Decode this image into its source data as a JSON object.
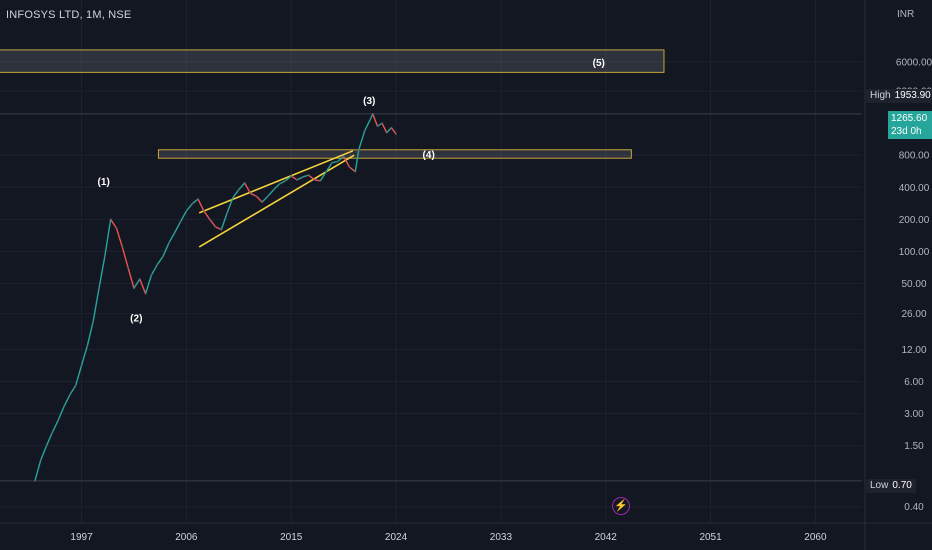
{
  "header": {
    "symbol_title": "INFOSYS LTD, 1M, NSE"
  },
  "price_scale": {
    "currency": "INR"
  },
  "high_marker": {
    "label": "High",
    "value": "1953.90"
  },
  "low_marker": {
    "label": "Low",
    "value": "0.70"
  },
  "last_price": {
    "value": "1265.60",
    "countdown": "23d 0h"
  },
  "colors": {
    "background": "#131722",
    "up": "#26a69a",
    "down": "#ef5350",
    "trendline": "#f5d33c",
    "zone_border": "#c9a53a",
    "accent": "#9c27b0"
  },
  "icons": {
    "bottom_button": "lightning-icon"
  },
  "chart_data": {
    "type": "line",
    "scale": "log",
    "y_ticks": [
      "6000.00",
      "3200.00",
      "800.00",
      "400.00",
      "200.00",
      "100.00",
      "50.00",
      "26.00",
      "12.00",
      "6.00",
      "3.00",
      "1.50",
      "0.40"
    ],
    "x_ticks": [
      "1997",
      "2006",
      "2015",
      "2024",
      "2033",
      "2042",
      "2051",
      "2060"
    ],
    "xlim": [
      1990,
      2064
    ],
    "ylim": [
      0.3,
      12000
    ],
    "series": [
      {
        "points": [
          [
            1993.0,
            0.7
          ],
          [
            1993.5,
            1.1
          ],
          [
            1994.0,
            1.5
          ],
          [
            1994.5,
            2.0
          ],
          [
            1995.0,
            2.6
          ],
          [
            1995.5,
            3.5
          ],
          [
            1996.0,
            4.5
          ],
          [
            1996.5,
            5.5
          ],
          [
            1997.0,
            8.5
          ],
          [
            1997.5,
            13
          ],
          [
            1998.0,
            22
          ],
          [
            1998.5,
            45
          ],
          [
            1999.0,
            90
          ],
          [
            1999.5,
            200
          ],
          [
            2000.0,
            165
          ],
          [
            2000.5,
            110
          ],
          [
            2001.0,
            70
          ],
          [
            2001.5,
            45
          ],
          [
            2002.0,
            55
          ],
          [
            2002.5,
            40
          ],
          [
            2003.0,
            60
          ],
          [
            2003.5,
            75
          ],
          [
            2004.0,
            90
          ],
          [
            2004.5,
            120
          ],
          [
            2005.0,
            150
          ],
          [
            2005.5,
            190
          ],
          [
            2006.0,
            240
          ],
          [
            2006.5,
            280
          ],
          [
            2007.0,
            310
          ],
          [
            2007.5,
            240
          ],
          [
            2008.0,
            200
          ],
          [
            2008.5,
            170
          ],
          [
            2009.0,
            160
          ],
          [
            2009.5,
            230
          ],
          [
            2010.0,
            320
          ],
          [
            2010.5,
            380
          ],
          [
            2011.0,
            440
          ],
          [
            2011.5,
            350
          ],
          [
            2012.0,
            330
          ],
          [
            2012.5,
            290
          ],
          [
            2013.0,
            330
          ],
          [
            2013.5,
            380
          ],
          [
            2014.0,
            430
          ],
          [
            2014.5,
            460
          ],
          [
            2015.0,
            510
          ],
          [
            2015.5,
            470
          ],
          [
            2016.0,
            500
          ],
          [
            2016.5,
            520
          ],
          [
            2017.0,
            470
          ],
          [
            2017.5,
            460
          ],
          [
            2018.0,
            560
          ],
          [
            2018.5,
            680
          ],
          [
            2019.0,
            700
          ],
          [
            2019.5,
            780
          ],
          [
            2020.0,
            620
          ],
          [
            2020.5,
            560
          ],
          [
            2020.8,
            900
          ],
          [
            2021.3,
            1350
          ],
          [
            2021.8,
            1750
          ],
          [
            2022.0,
            1953.9
          ],
          [
            2022.4,
            1500
          ],
          [
            2022.8,
            1600
          ],
          [
            2023.2,
            1300
          ],
          [
            2023.6,
            1450
          ],
          [
            2024.0,
            1265.6
          ]
        ]
      }
    ],
    "annotations": [
      {
        "text": "(1)",
        "x": 1998.9,
        "y": 460
      },
      {
        "text": "(2)",
        "x": 2001.7,
        "y": 24
      },
      {
        "text": "(3)",
        "x": 2021.7,
        "y": 2650
      },
      {
        "text": "(4)",
        "x": 2026.8,
        "y": 820
      },
      {
        "text": "(5)",
        "x": 2041.4,
        "y": 6000
      }
    ],
    "zones": [
      {
        "label": "(5)",
        "x0": 1988.5,
        "x1": 2047.0,
        "y0": 4800,
        "y1": 7800
      },
      {
        "label": "(4)",
        "x0": 2003.6,
        "x1": 2044.2,
        "y0": 750,
        "y1": 900
      }
    ],
    "trendlines": [
      {
        "from": [
          2007.1,
          230
        ],
        "to": [
          2020.3,
          880
        ]
      },
      {
        "from": [
          2007.1,
          110
        ],
        "to": [
          2020.4,
          800
        ]
      }
    ],
    "high_line": 1953.9,
    "low_line": 0.7
  }
}
